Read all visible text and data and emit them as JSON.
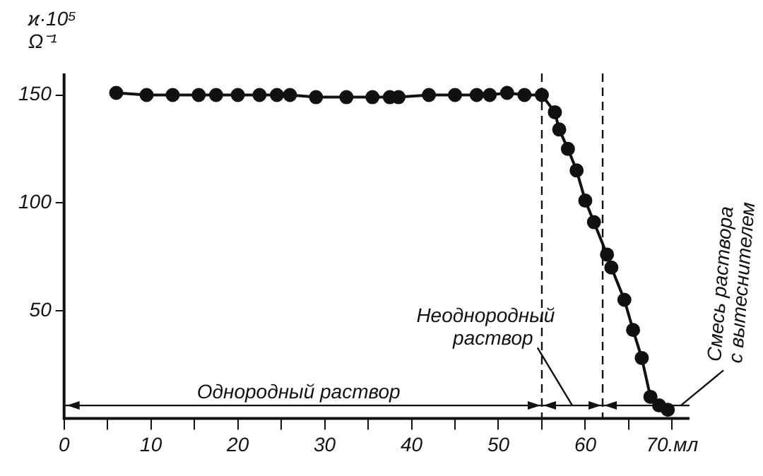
{
  "chart_data": {
    "type": "line",
    "ylabel": "ϰ·10⁵\nΩ⁻¹",
    "x": [
      6,
      9.5,
      12.5,
      15.5,
      17.5,
      20,
      22.5,
      24.5,
      26,
      29,
      32.5,
      35.5,
      37.5,
      38.5,
      42,
      45,
      47.5,
      49,
      51,
      53,
      55,
      56.5,
      57,
      58,
      59,
      60,
      61,
      62.5,
      63,
      64.5,
      65.5,
      66.5,
      67.5,
      68.5,
      69.5
    ],
    "series": [
      {
        "color": "#111111",
        "values": [
          151,
          150,
          150,
          150,
          150,
          150,
          150,
          150,
          150,
          149,
          149,
          149,
          149,
          149,
          150,
          150,
          150,
          150,
          151,
          150,
          150,
          142,
          134,
          125,
          115,
          101,
          91,
          76,
          70,
          55,
          41,
          28,
          10,
          6,
          4
        ]
      }
    ],
    "xlim": [
      0,
      72
    ],
    "ylim": [
      0,
      160
    ],
    "xticks": [
      0,
      {
        "value": 5,
        "label": null
      },
      10,
      {
        "value": 15,
        "label": null
      },
      20,
      {
        "value": 25,
        "label": null
      },
      30,
      {
        "value": 35,
        "label": null
      },
      40,
      {
        "value": 45,
        "label": null
      },
      50,
      {
        "value": 55,
        "label": null
      },
      60,
      {
        "value": 65,
        "label": null
      },
      {
        "value": 70,
        "label": "70.мл"
      }
    ],
    "yticks": [
      50,
      100,
      150
    ],
    "ref_lines": [
      {
        "axis": "x",
        "value": 55,
        "line_style": "dashed"
      },
      {
        "axis": "x",
        "value": 62,
        "line_style": "dashed"
      },
      {
        "axis": "y",
        "value": 6,
        "line_style": "solid"
      }
    ],
    "annotations": [
      "Однородный раствор",
      {
        "text": "Неоднородный раствор",
        "x": 58.5,
        "y": 6
      },
      {
        "text": "Смесь раствора с вытеснителем",
        "x": 71,
        "y": 6
      }
    ],
    "marker": "circle",
    "line_style": "solid",
    "grid": false,
    "legend": false
  }
}
